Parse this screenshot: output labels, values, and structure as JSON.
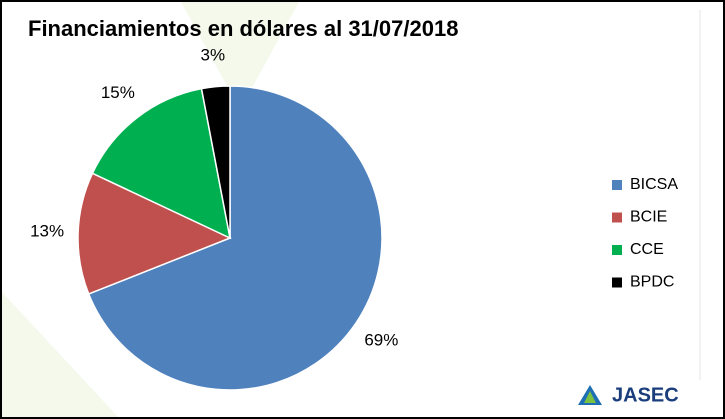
{
  "chart_data": {
    "type": "pie",
    "title": "Financiamientos en dólares al 31/07/2018",
    "categories": [
      "BICSA",
      "BCIE",
      "CCE",
      "BPDC"
    ],
    "values": [
      69,
      13,
      15,
      3
    ],
    "value_labels": [
      "69%",
      "13%",
      "15%",
      "3%"
    ],
    "colors": [
      "#4f81bd",
      "#c0504d",
      "#00b050",
      "#000000"
    ],
    "legend": "right"
  },
  "logo": "JASEC"
}
